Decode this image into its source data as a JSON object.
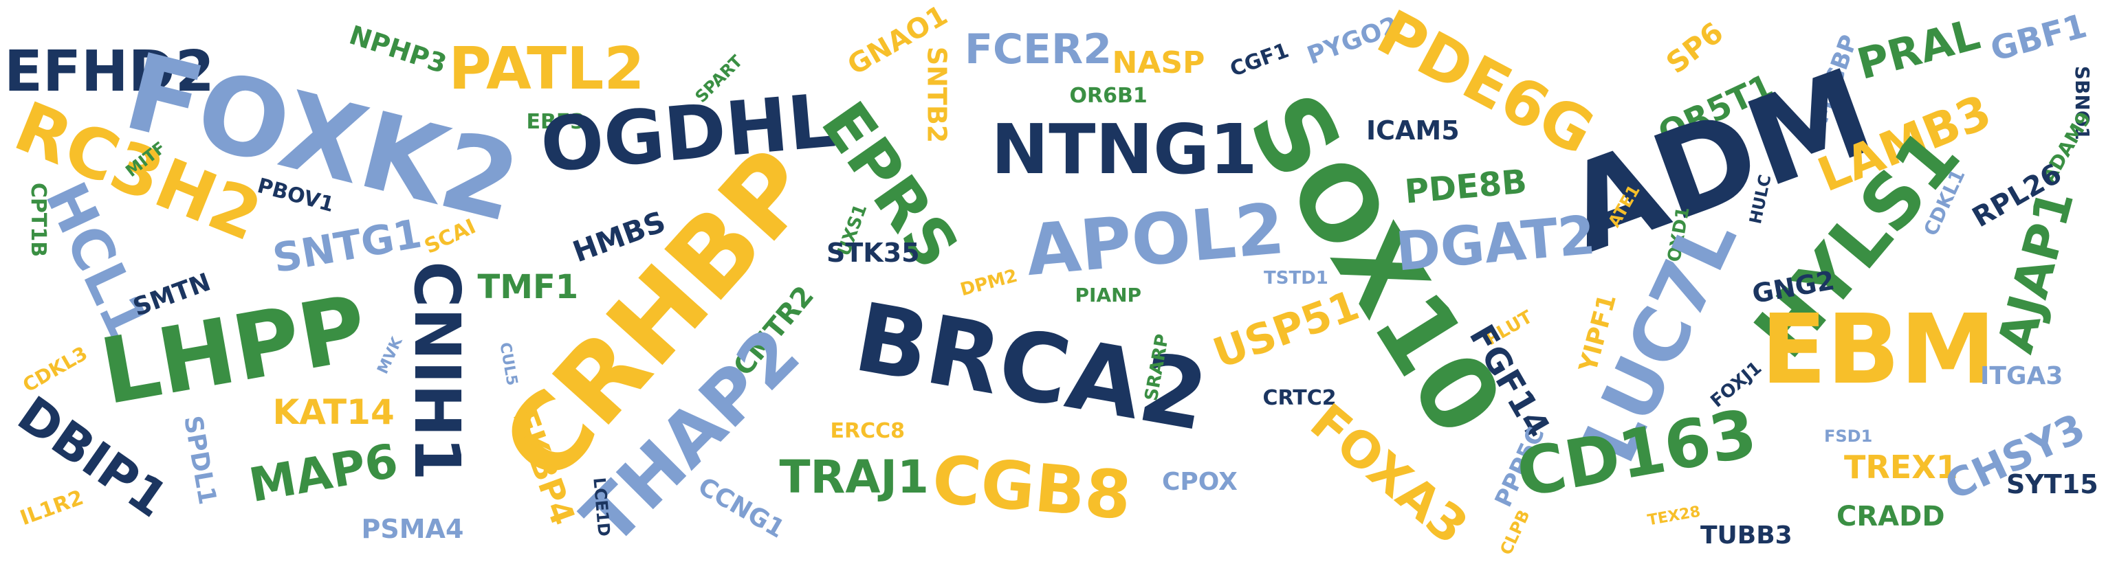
{
  "palette": {
    "navy": "#1b3560",
    "green": "#3a8f43",
    "gold": "#f7bf2a",
    "blue": "#7f9fd1"
  },
  "words": [
    {
      "text": "EFHD2",
      "color": "navy"
    },
    {
      "text": "FOXK2",
      "color": "blue"
    },
    {
      "text": "NPHP3",
      "color": "green"
    },
    {
      "text": "PATL2",
      "color": "gold"
    },
    {
      "text": "SPART",
      "color": "green"
    },
    {
      "text": "GNAO1",
      "color": "gold"
    },
    {
      "text": "SNTB2",
      "color": "gold"
    },
    {
      "text": "FCER2",
      "color": "blue"
    },
    {
      "text": "NASP",
      "color": "gold"
    },
    {
      "text": "CGF1",
      "color": "navy"
    },
    {
      "text": "PYGO2",
      "color": "blue"
    },
    {
      "text": "PDE6G",
      "color": "gold"
    },
    {
      "text": "SP6",
      "color": "gold"
    },
    {
      "text": "MYCBP",
      "color": "blue"
    },
    {
      "text": "PRAL",
      "color": "green"
    },
    {
      "text": "GBF1",
      "color": "blue"
    },
    {
      "text": "SBNO1",
      "color": "navy"
    },
    {
      "text": "RC3H2",
      "color": "gold"
    },
    {
      "text": "MITF",
      "color": "green"
    },
    {
      "text": "EBF3",
      "color": "green"
    },
    {
      "text": "OGDHL",
      "color": "navy"
    },
    {
      "text": "EPRS",
      "color": "green"
    },
    {
      "text": "OR6B1",
      "color": "green"
    },
    {
      "text": "NTNG1",
      "color": "navy"
    },
    {
      "text": "ICAM5",
      "color": "navy"
    },
    {
      "text": "SOX10",
      "color": "green"
    },
    {
      "text": "OR5T1",
      "color": "green"
    },
    {
      "text": "ADM",
      "color": "navy"
    },
    {
      "text": "LAMB3",
      "color": "gold"
    },
    {
      "text": "ADAM9",
      "color": "green"
    },
    {
      "text": "CPT1B",
      "color": "green"
    },
    {
      "text": "HCL1",
      "color": "blue"
    },
    {
      "text": "PBOV1",
      "color": "navy"
    },
    {
      "text": "SNTG1",
      "color": "blue"
    },
    {
      "text": "SCAI",
      "color": "gold"
    },
    {
      "text": "HMBS",
      "color": "navy"
    },
    {
      "text": "CRHBP",
      "color": "gold"
    },
    {
      "text": "UXS1",
      "color": "green"
    },
    {
      "text": "STK35",
      "color": "navy"
    },
    {
      "text": "APOL2",
      "color": "blue"
    },
    {
      "text": "PDE8B",
      "color": "green"
    },
    {
      "text": "DGAT2",
      "color": "blue"
    },
    {
      "text": "ATE1",
      "color": "gold"
    },
    {
      "text": "FOXD1",
      "color": "green"
    },
    {
      "text": "HULC",
      "color": "navy"
    },
    {
      "text": "HYLS1",
      "color": "green"
    },
    {
      "text": "CDKL1",
      "color": "blue"
    },
    {
      "text": "RPL26",
      "color": "navy"
    },
    {
      "text": "AJAP1",
      "color": "green"
    },
    {
      "text": "SMTN",
      "color": "navy"
    },
    {
      "text": "LHPP",
      "color": "green"
    },
    {
      "text": "CNIH1",
      "color": "navy"
    },
    {
      "text": "TMF1",
      "color": "green"
    },
    {
      "text": "DPM2",
      "color": "gold"
    },
    {
      "text": "PIANP",
      "color": "green"
    },
    {
      "text": "TSTD1",
      "color": "blue"
    },
    {
      "text": "USP51",
      "color": "gold"
    },
    {
      "text": "PLUT",
      "color": "gold"
    },
    {
      "text": "YIPF1",
      "color": "gold"
    },
    {
      "text": "GNG2",
      "color": "navy"
    },
    {
      "text": "LUC7L",
      "color": "blue"
    },
    {
      "text": "EBM",
      "color": "gold"
    },
    {
      "text": "CDKL3",
      "color": "gold"
    },
    {
      "text": "MVK",
      "color": "blue"
    },
    {
      "text": "CUL5",
      "color": "blue"
    },
    {
      "text": "CMTR2",
      "color": "green"
    },
    {
      "text": "BRCA2",
      "color": "navy"
    },
    {
      "text": "SRARP",
      "color": "green"
    },
    {
      "text": "FGF14",
      "color": "navy"
    },
    {
      "text": "ITGA3",
      "color": "blue"
    },
    {
      "text": "KAT14",
      "color": "gold"
    },
    {
      "text": "THAP2",
      "color": "blue"
    },
    {
      "text": "CRTC2",
      "color": "navy"
    },
    {
      "text": "FOXJ1",
      "color": "navy"
    },
    {
      "text": "DBIP1",
      "color": "navy"
    },
    {
      "text": "SPDL1",
      "color": "blue"
    },
    {
      "text": "MAP6",
      "color": "green"
    },
    {
      "text": "FKBP4",
      "color": "gold"
    },
    {
      "text": "ERCC8",
      "color": "gold"
    },
    {
      "text": "TRAJ1",
      "color": "green"
    },
    {
      "text": "CGB8",
      "color": "gold"
    },
    {
      "text": "FOXA3",
      "color": "gold"
    },
    {
      "text": "PPP5C",
      "color": "blue"
    },
    {
      "text": "CD163",
      "color": "green"
    },
    {
      "text": "FSD1",
      "color": "blue"
    },
    {
      "text": "TREX1",
      "color": "gold"
    },
    {
      "text": "CHSY3",
      "color": "blue"
    },
    {
      "text": "IL1R2",
      "color": "gold"
    },
    {
      "text": "PSMA4",
      "color": "blue"
    },
    {
      "text": "LCE1D",
      "color": "navy"
    },
    {
      "text": "CCNG1",
      "color": "blue"
    },
    {
      "text": "CPOX",
      "color": "blue"
    },
    {
      "text": "CLPB",
      "color": "gold"
    },
    {
      "text": "TEX28",
      "color": "gold"
    },
    {
      "text": "TUBB3",
      "color": "navy"
    },
    {
      "text": "CRADD",
      "color": "green"
    },
    {
      "text": "SYT15",
      "color": "navy"
    }
  ]
}
